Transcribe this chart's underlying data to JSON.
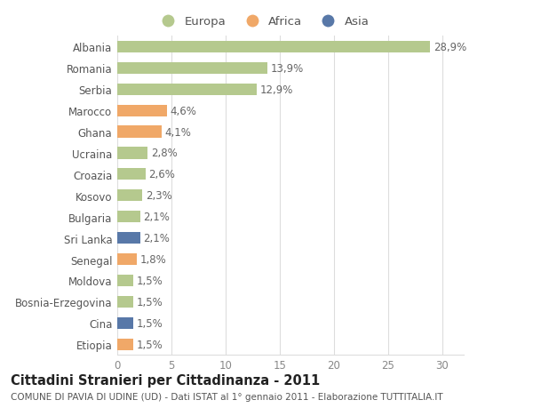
{
  "countries": [
    "Albania",
    "Romania",
    "Serbia",
    "Marocco",
    "Ghana",
    "Ucraina",
    "Croazia",
    "Kosovo",
    "Bulgaria",
    "Sri Lanka",
    "Senegal",
    "Moldova",
    "Bosnia-Erzegovina",
    "Cina",
    "Etiopia"
  ],
  "values": [
    28.9,
    13.9,
    12.9,
    4.6,
    4.1,
    2.8,
    2.6,
    2.3,
    2.1,
    2.1,
    1.8,
    1.5,
    1.5,
    1.5,
    1.5
  ],
  "labels": [
    "28,9%",
    "13,9%",
    "12,9%",
    "4,6%",
    "4,1%",
    "2,8%",
    "2,6%",
    "2,3%",
    "2,1%",
    "2,1%",
    "1,8%",
    "1,5%",
    "1,5%",
    "1,5%",
    "1,5%"
  ],
  "continents": [
    "Europa",
    "Europa",
    "Europa",
    "Africa",
    "Africa",
    "Europa",
    "Europa",
    "Europa",
    "Europa",
    "Asia",
    "Africa",
    "Europa",
    "Europa",
    "Asia",
    "Africa"
  ],
  "colors": {
    "Europa": "#b5c98e",
    "Africa": "#f0a868",
    "Asia": "#5878a8"
  },
  "legend_labels": [
    "Europa",
    "Africa",
    "Asia"
  ],
  "title": "Cittadini Stranieri per Cittadinanza - 2011",
  "subtitle": "COMUNE DI PAVIA DI UDINE (UD) - Dati ISTAT al 1° gennaio 2011 - Elaborazione TUTTITALIA.IT",
  "xlim": [
    0,
    32
  ],
  "xticks": [
    0,
    5,
    10,
    15,
    20,
    25,
    30
  ],
  "background_color": "#ffffff",
  "grid_color": "#dddddd",
  "bar_height": 0.55,
  "label_fontsize": 8.5,
  "tick_label_fontsize": 8.5,
  "title_fontsize": 10.5,
  "subtitle_fontsize": 7.5
}
